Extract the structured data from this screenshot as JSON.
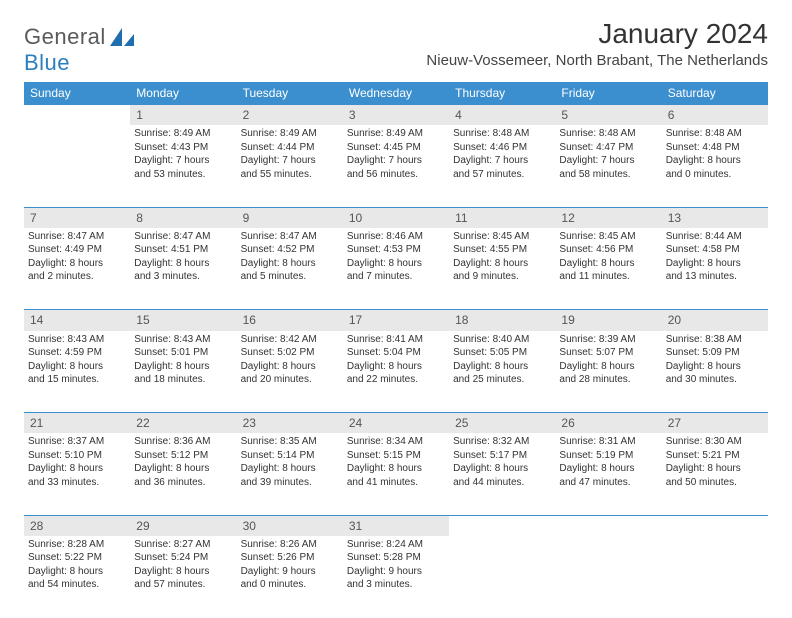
{
  "logo": {
    "text1": "General",
    "text2": "Blue"
  },
  "title": "January 2024",
  "location": "Nieuw-Vossemeer, North Brabant, The Netherlands",
  "header_bg": "#3b8fce",
  "daynum_bg": "#e8e8e8",
  "days": [
    "Sunday",
    "Monday",
    "Tuesday",
    "Wednesday",
    "Thursday",
    "Friday",
    "Saturday"
  ],
  "weeks": [
    {
      "nums": [
        "",
        "1",
        "2",
        "3",
        "4",
        "5",
        "6"
      ],
      "cells": [
        [],
        [
          "Sunrise: 8:49 AM",
          "Sunset: 4:43 PM",
          "Daylight: 7 hours",
          "and 53 minutes."
        ],
        [
          "Sunrise: 8:49 AM",
          "Sunset: 4:44 PM",
          "Daylight: 7 hours",
          "and 55 minutes."
        ],
        [
          "Sunrise: 8:49 AM",
          "Sunset: 4:45 PM",
          "Daylight: 7 hours",
          "and 56 minutes."
        ],
        [
          "Sunrise: 8:48 AM",
          "Sunset: 4:46 PM",
          "Daylight: 7 hours",
          "and 57 minutes."
        ],
        [
          "Sunrise: 8:48 AM",
          "Sunset: 4:47 PM",
          "Daylight: 7 hours",
          "and 58 minutes."
        ],
        [
          "Sunrise: 8:48 AM",
          "Sunset: 4:48 PM",
          "Daylight: 8 hours",
          "and 0 minutes."
        ]
      ]
    },
    {
      "nums": [
        "7",
        "8",
        "9",
        "10",
        "11",
        "12",
        "13"
      ],
      "cells": [
        [
          "Sunrise: 8:47 AM",
          "Sunset: 4:49 PM",
          "Daylight: 8 hours",
          "and 2 minutes."
        ],
        [
          "Sunrise: 8:47 AM",
          "Sunset: 4:51 PM",
          "Daylight: 8 hours",
          "and 3 minutes."
        ],
        [
          "Sunrise: 8:47 AM",
          "Sunset: 4:52 PM",
          "Daylight: 8 hours",
          "and 5 minutes."
        ],
        [
          "Sunrise: 8:46 AM",
          "Sunset: 4:53 PM",
          "Daylight: 8 hours",
          "and 7 minutes."
        ],
        [
          "Sunrise: 8:45 AM",
          "Sunset: 4:55 PM",
          "Daylight: 8 hours",
          "and 9 minutes."
        ],
        [
          "Sunrise: 8:45 AM",
          "Sunset: 4:56 PM",
          "Daylight: 8 hours",
          "and 11 minutes."
        ],
        [
          "Sunrise: 8:44 AM",
          "Sunset: 4:58 PM",
          "Daylight: 8 hours",
          "and 13 minutes."
        ]
      ]
    },
    {
      "nums": [
        "14",
        "15",
        "16",
        "17",
        "18",
        "19",
        "20"
      ],
      "cells": [
        [
          "Sunrise: 8:43 AM",
          "Sunset: 4:59 PM",
          "Daylight: 8 hours",
          "and 15 minutes."
        ],
        [
          "Sunrise: 8:43 AM",
          "Sunset: 5:01 PM",
          "Daylight: 8 hours",
          "and 18 minutes."
        ],
        [
          "Sunrise: 8:42 AM",
          "Sunset: 5:02 PM",
          "Daylight: 8 hours",
          "and 20 minutes."
        ],
        [
          "Sunrise: 8:41 AM",
          "Sunset: 5:04 PM",
          "Daylight: 8 hours",
          "and 22 minutes."
        ],
        [
          "Sunrise: 8:40 AM",
          "Sunset: 5:05 PM",
          "Daylight: 8 hours",
          "and 25 minutes."
        ],
        [
          "Sunrise: 8:39 AM",
          "Sunset: 5:07 PM",
          "Daylight: 8 hours",
          "and 28 minutes."
        ],
        [
          "Sunrise: 8:38 AM",
          "Sunset: 5:09 PM",
          "Daylight: 8 hours",
          "and 30 minutes."
        ]
      ]
    },
    {
      "nums": [
        "21",
        "22",
        "23",
        "24",
        "25",
        "26",
        "27"
      ],
      "cells": [
        [
          "Sunrise: 8:37 AM",
          "Sunset: 5:10 PM",
          "Daylight: 8 hours",
          "and 33 minutes."
        ],
        [
          "Sunrise: 8:36 AM",
          "Sunset: 5:12 PM",
          "Daylight: 8 hours",
          "and 36 minutes."
        ],
        [
          "Sunrise: 8:35 AM",
          "Sunset: 5:14 PM",
          "Daylight: 8 hours",
          "and 39 minutes."
        ],
        [
          "Sunrise: 8:34 AM",
          "Sunset: 5:15 PM",
          "Daylight: 8 hours",
          "and 41 minutes."
        ],
        [
          "Sunrise: 8:32 AM",
          "Sunset: 5:17 PM",
          "Daylight: 8 hours",
          "and 44 minutes."
        ],
        [
          "Sunrise: 8:31 AM",
          "Sunset: 5:19 PM",
          "Daylight: 8 hours",
          "and 47 minutes."
        ],
        [
          "Sunrise: 8:30 AM",
          "Sunset: 5:21 PM",
          "Daylight: 8 hours",
          "and 50 minutes."
        ]
      ]
    },
    {
      "nums": [
        "28",
        "29",
        "30",
        "31",
        "",
        "",
        ""
      ],
      "cells": [
        [
          "Sunrise: 8:28 AM",
          "Sunset: 5:22 PM",
          "Daylight: 8 hours",
          "and 54 minutes."
        ],
        [
          "Sunrise: 8:27 AM",
          "Sunset: 5:24 PM",
          "Daylight: 8 hours",
          "and 57 minutes."
        ],
        [
          "Sunrise: 8:26 AM",
          "Sunset: 5:26 PM",
          "Daylight: 9 hours",
          "and 0 minutes."
        ],
        [
          "Sunrise: 8:24 AM",
          "Sunset: 5:28 PM",
          "Daylight: 9 hours",
          "and 3 minutes."
        ],
        [],
        [],
        []
      ]
    }
  ]
}
